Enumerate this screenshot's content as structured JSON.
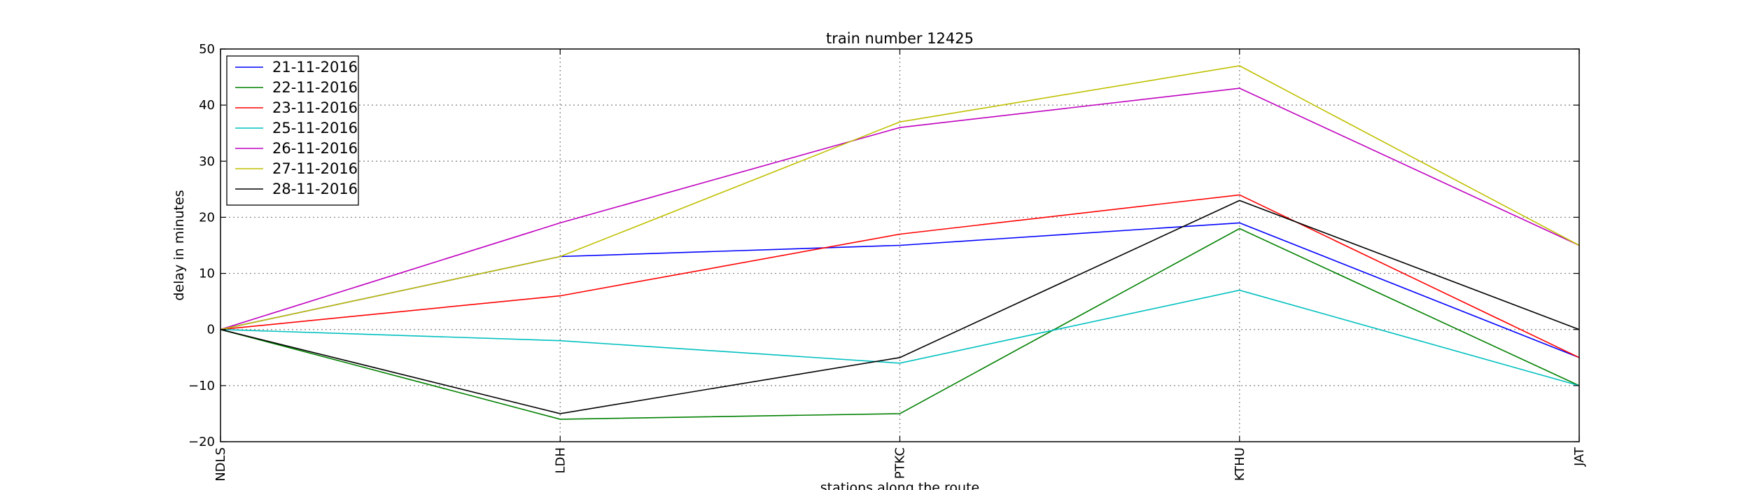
{
  "chart_data": {
    "type": "line",
    "title": "train number 12425",
    "xlabel": "stations along the route",
    "ylabel": "delay in minutes",
    "categories": [
      "NDLS",
      "LDH",
      "PTKC",
      "KTHU",
      "JAT"
    ],
    "ylim": [
      -20,
      50
    ],
    "yticks": [
      -20,
      -10,
      0,
      10,
      20,
      30,
      40,
      50
    ],
    "grid": true,
    "legend_position": "top-left",
    "series": [
      {
        "name": "21-11-2016",
        "color": "#0000ff",
        "values": [
          0,
          13,
          15,
          19,
          -5
        ]
      },
      {
        "name": "22-11-2016",
        "color": "#008000",
        "values": [
          0,
          -16,
          -15,
          18,
          -10
        ]
      },
      {
        "name": "23-11-2016",
        "color": "#ff0000",
        "values": [
          0,
          6,
          17,
          24,
          -5
        ]
      },
      {
        "name": "25-11-2016",
        "color": "#00bfbf",
        "values": [
          0,
          -2,
          -6,
          7,
          -10
        ]
      },
      {
        "name": "26-11-2016",
        "color": "#bf00bf",
        "values": [
          0,
          19,
          36,
          43,
          15
        ]
      },
      {
        "name": "27-11-2016",
        "color": "#bfbf00",
        "values": [
          0,
          13,
          37,
          47,
          15
        ]
      },
      {
        "name": "28-11-2016",
        "color": "#000000",
        "values": [
          0,
          -15,
          -5,
          23,
          0
        ]
      }
    ]
  }
}
